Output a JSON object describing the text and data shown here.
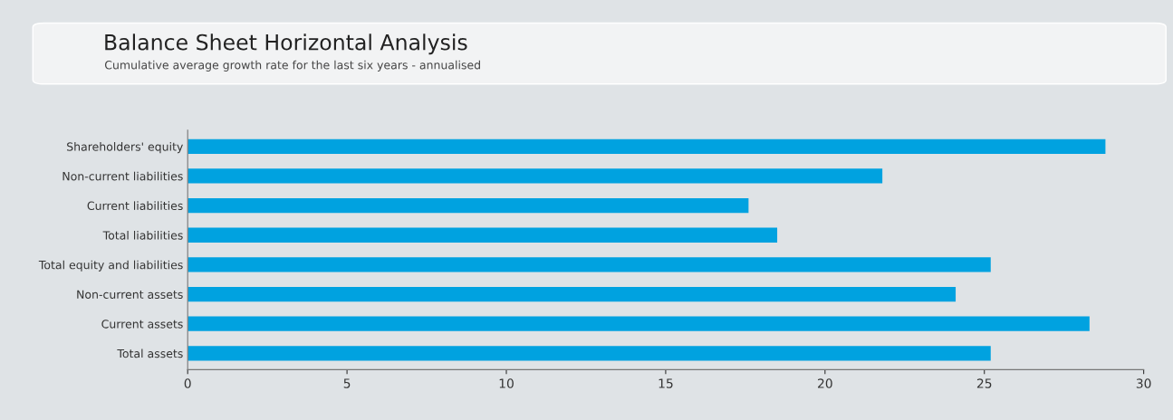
{
  "chart_data": {
    "type": "bar",
    "orientation": "horizontal",
    "title": "Balance Sheet Horizontal Analysis",
    "subtitle": "Cumulative average growth rate for the last six years - annualised",
    "categories": [
      "Shareholders' equity",
      "Non-current liabilities",
      "Current liabilities",
      "Total liabilities",
      "Total equity and liabilities",
      "Non-current assets",
      "Current assets",
      "Total assets"
    ],
    "values": [
      28.8,
      21.8,
      17.6,
      18.5,
      25.2,
      24.1,
      28.3,
      25.2
    ],
    "color": "#00a2e0",
    "xlim": [
      0,
      30
    ],
    "xticks": [
      0,
      5,
      10,
      15,
      20,
      25,
      30
    ],
    "grid": false,
    "legend": false
  }
}
